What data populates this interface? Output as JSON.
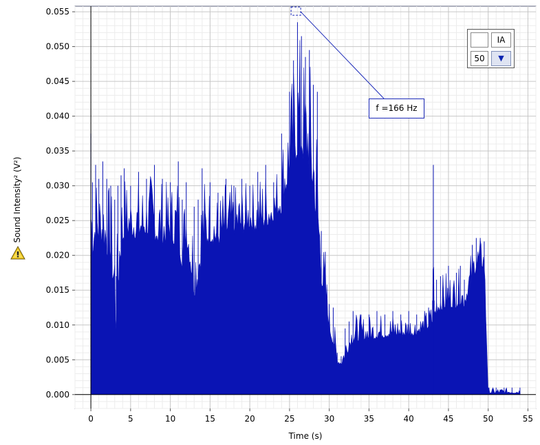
{
  "chart_data": {
    "type": "area",
    "title": "",
    "xlabel": "Time (s)",
    "ylabel": "Sound Intensity² (V²)",
    "xlim": [
      -2,
      56
    ],
    "ylim": [
      -0.002,
      0.0558
    ],
    "x_ticks": [
      0,
      5,
      10,
      15,
      20,
      25,
      30,
      35,
      40,
      45,
      50,
      55
    ],
    "y_ticks": [
      0.0,
      0.005,
      0.01,
      0.015,
      0.02,
      0.025,
      0.03,
      0.035,
      0.04,
      0.045,
      0.05,
      0.055
    ],
    "y_tick_labels": [
      "0.000",
      "0.005",
      "0.010",
      "0.015",
      "0.020",
      "0.025",
      "0.030",
      "0.035",
      "0.040",
      "0.045",
      "0.050",
      "0.055"
    ],
    "series": [
      {
        "name": "Sound Intensity²",
        "color": "#0a14b4",
        "x": [
          0.0,
          0.2,
          0.6,
          1.0,
          1.5,
          2.0,
          2.5,
          3.0,
          3.2,
          3.4,
          3.8,
          4.2,
          5.0,
          6.0,
          7.0,
          8.0,
          9.0,
          10.0,
          11.0,
          11.5,
          12.0,
          13.0,
          13.5,
          14.0,
          15.0,
          16.0,
          17.0,
          18.0,
          19.0,
          20.0,
          21.0,
          22.0,
          23.0,
          24.0,
          25.0,
          25.5,
          26.0,
          26.5,
          27.0,
          27.5,
          28.0,
          28.5,
          29.0,
          29.5,
          30.0,
          30.5,
          31.0,
          31.5,
          32.0,
          32.5,
          33.0,
          34.0,
          35.0,
          36.0,
          37.0,
          38.0,
          39.0,
          40.0,
          41.0,
          42.0,
          42.5,
          43.0,
          43.1,
          43.2,
          43.5,
          44.0,
          45.0,
          46.0,
          46.5,
          47.0,
          48.0,
          48.5,
          49.0,
          49.5,
          50.0,
          50.1,
          51.0,
          52.0,
          53.0,
          54.0
        ],
        "peaks": [
          0.0375,
          0.0305,
          0.033,
          0.031,
          0.0335,
          0.031,
          0.03,
          0.028,
          0.017,
          0.03,
          0.0315,
          0.0325,
          0.03,
          0.032,
          0.031,
          0.033,
          0.031,
          0.0305,
          0.0335,
          0.028,
          0.0305,
          0.027,
          0.028,
          0.0325,
          0.0305,
          0.029,
          0.031,
          0.03,
          0.031,
          0.03,
          0.032,
          0.033,
          0.0305,
          0.0375,
          0.0435,
          0.048,
          0.0535,
          0.0515,
          0.0485,
          0.0495,
          0.0445,
          0.0435,
          0.0235,
          0.0205,
          0.013,
          0.0125,
          0.006,
          0.0055,
          0.0095,
          0.0105,
          0.012,
          0.0115,
          0.0115,
          0.012,
          0.0115,
          0.012,
          0.0115,
          0.012,
          0.0115,
          0.012,
          0.0125,
          0.0135,
          0.033,
          0.0135,
          0.0165,
          0.017,
          0.0185,
          0.0175,
          0.0185,
          0.0165,
          0.0215,
          0.0225,
          0.0225,
          0.022,
          0.001,
          0.001,
          0.001,
          0.001,
          0.001,
          0.001
        ],
        "floors": [
          0.022,
          0.02,
          0.021,
          0.022,
          0.021,
          0.02,
          0.019,
          0.012,
          0.008,
          0.014,
          0.02,
          0.022,
          0.023,
          0.022,
          0.023,
          0.022,
          0.021,
          0.022,
          0.021,
          0.018,
          0.022,
          0.014,
          0.015,
          0.02,
          0.022,
          0.021,
          0.022,
          0.023,
          0.023,
          0.024,
          0.023,
          0.024,
          0.025,
          0.026,
          0.031,
          0.033,
          0.034,
          0.034,
          0.033,
          0.032,
          0.028,
          0.022,
          0.016,
          0.013,
          0.009,
          0.007,
          0.0045,
          0.0042,
          0.005,
          0.0065,
          0.0075,
          0.0078,
          0.0078,
          0.008,
          0.0082,
          0.0082,
          0.0082,
          0.0083,
          0.0085,
          0.009,
          0.0095,
          0.01,
          0.011,
          0.0105,
          0.0115,
          0.012,
          0.0125,
          0.0125,
          0.013,
          0.0125,
          0.016,
          0.018,
          0.0185,
          0.018,
          0.0003,
          0.0002,
          0.0002,
          0.0002,
          0.0002,
          0.0002
        ]
      }
    ],
    "annotation": {
      "label": "f =166 Hz",
      "x": 25.8,
      "y": 0.055
    },
    "legend": {
      "label": "IA",
      "value": "50",
      "position": "top-right"
    }
  }
}
